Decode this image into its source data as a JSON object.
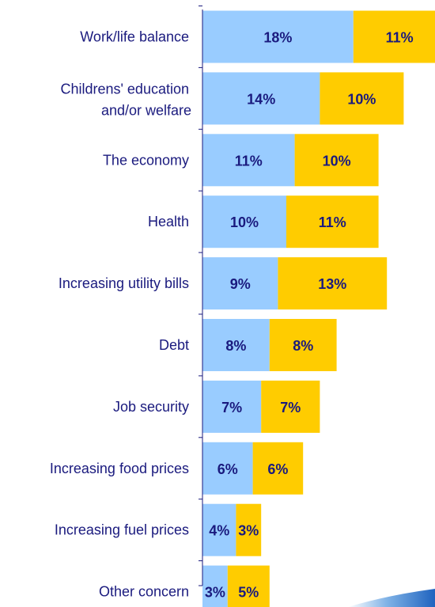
{
  "chart_data": {
    "type": "bar",
    "orientation": "horizontal",
    "stacked": true,
    "categories": [
      "Work/life balance",
      "Childrens' education and/or welfare",
      "The economy",
      "Health",
      "Increasing utility bills",
      "Debt",
      "Job security",
      "Increasing food prices",
      "Increasing fuel prices",
      "Other concern"
    ],
    "series": [
      {
        "values": [
          18,
          14,
          11,
          10,
          9,
          8,
          7,
          6,
          4,
          3
        ],
        "color": "#99CCFF"
      },
      {
        "values": [
          11,
          10,
          10,
          11,
          13,
          8,
          7,
          6,
          3,
          5
        ],
        "color": "#FFCC00"
      }
    ],
    "value_suffix": "%",
    "data_label_color": "#1A1A7E",
    "category_label_color": "#1A1A7E",
    "axis_color": "#1A1A7E",
    "xlim": [
      0,
      28
    ],
    "grid": false,
    "legend": "none",
    "data_labels": true,
    "title": "",
    "xlabel": "",
    "ylabel": ""
  }
}
